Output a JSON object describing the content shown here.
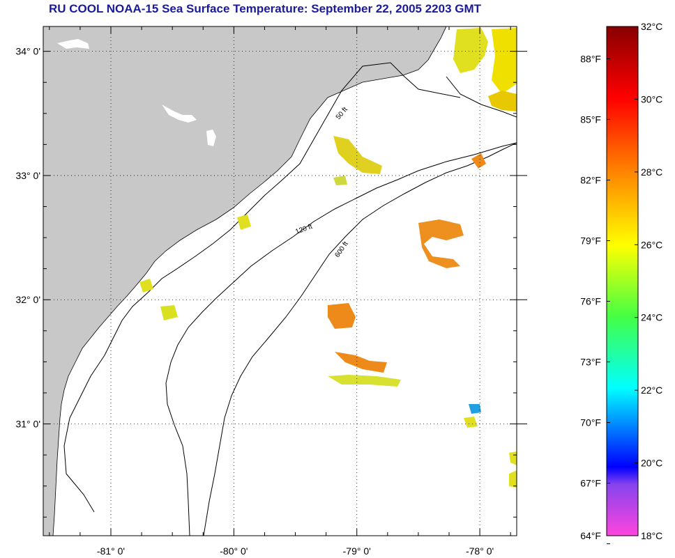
{
  "title": "RU COOL  NOAA-15  Sea Surface Temperature:  September 22, 2005 2203 GMT",
  "map": {
    "lat_ticks": [
      {
        "value": 34,
        "label": "34° 0'"
      },
      {
        "value": 33,
        "label": "33° 0'"
      },
      {
        "value": 32,
        "label": "32° 0'"
      },
      {
        "value": 31,
        "label": "31° 0'"
      }
    ],
    "lon_ticks": [
      {
        "value": -81,
        "label": "-81° 0'"
      },
      {
        "value": -80,
        "label": "-80° 0'"
      },
      {
        "value": -79,
        "label": "-79° 0'"
      },
      {
        "value": -78,
        "label": "-78° 0'"
      }
    ],
    "lat_range": [
      30.1,
      34.2
    ],
    "lon_range": [
      -81.55,
      -77.7
    ],
    "contour_labels": [
      "50 ft",
      "120 ft",
      "600 ft"
    ],
    "colors": {
      "land": "#c8c8c8",
      "water": "#ffffff",
      "grid": "#000000",
      "isobath": "#000000"
    }
  },
  "color_scale": {
    "celsius_labels": [
      "32°C",
      "30°C",
      "28°C",
      "26°C",
      "24°C",
      "22°C",
      "20°C",
      "18°C"
    ],
    "fahrenheit_labels": [
      "88°F",
      "85°F",
      "82°F",
      "79°F",
      "76°F",
      "73°F",
      "70°F",
      "67°F",
      "64°F"
    ],
    "celsius_values": [
      32,
      30,
      28,
      26,
      24,
      22,
      20,
      18
    ],
    "fahrenheit_values": [
      88,
      85,
      82,
      79,
      76,
      73,
      70,
      67,
      64
    ],
    "range_c": [
      18,
      32
    ],
    "stops": [
      {
        "t": 0.0,
        "color": "#ff44dd"
      },
      {
        "t": 0.1,
        "color": "#8844ee"
      },
      {
        "t": 0.135,
        "color": "#0000ff"
      },
      {
        "t": 0.29,
        "color": "#00ffff"
      },
      {
        "t": 0.43,
        "color": "#44ff44"
      },
      {
        "t": 0.57,
        "color": "#ffff00"
      },
      {
        "t": 0.71,
        "color": "#ff8800"
      },
      {
        "t": 0.86,
        "color": "#ff0000"
      },
      {
        "t": 1.0,
        "color": "#880000"
      }
    ]
  }
}
